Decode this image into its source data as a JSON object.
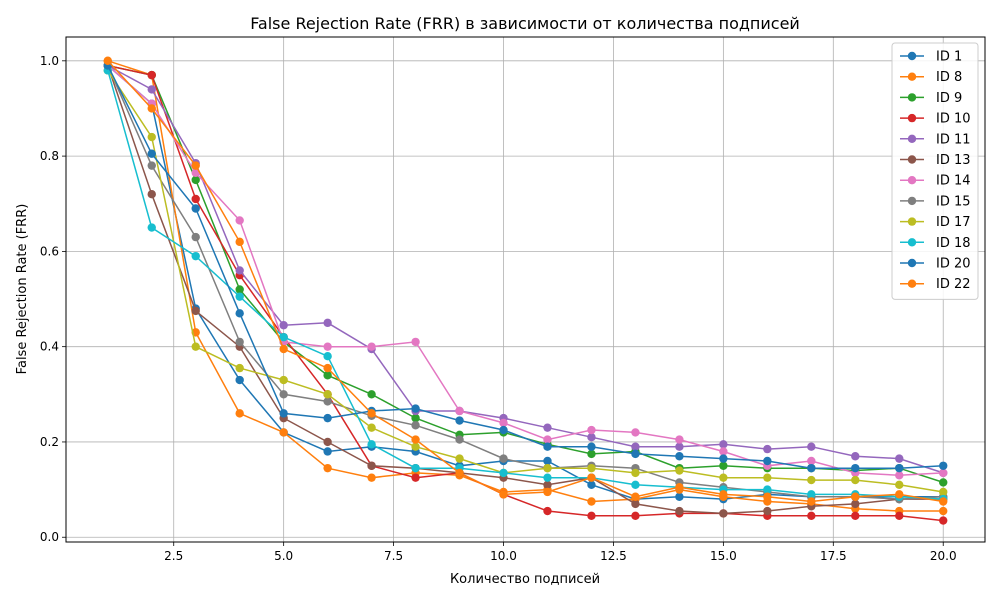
{
  "chart_data": {
    "type": "line",
    "title": "False Rejection Rate (FRR) в зависимости от количества подписей",
    "xlabel": "Количество подписей",
    "ylabel": "False Rejection Rate (FRR)",
    "xlim": [
      0.05,
      20.95
    ],
    "ylim": [
      -0.01,
      1.05
    ],
    "xticks": [
      2.5,
      5.0,
      7.5,
      10.0,
      12.5,
      15.0,
      17.5,
      20.0
    ],
    "xtick_labels": [
      "2.5",
      "5.0",
      "7.5",
      "10.0",
      "12.5",
      "15.0",
      "17.5",
      "20.0"
    ],
    "yticks": [
      0.0,
      0.2,
      0.4,
      0.6,
      0.8,
      1.0
    ],
    "ytick_labels": [
      "0.0",
      "0.2",
      "0.4",
      "0.6",
      "0.8",
      "1.0"
    ],
    "grid": true,
    "legend_position": "top-right",
    "x": [
      1,
      2,
      3,
      4,
      5,
      6,
      7,
      8,
      9,
      10,
      11,
      12,
      13,
      14,
      15,
      16,
      17,
      18,
      19,
      20
    ],
    "series": [
      {
        "name": "ID 1",
        "color": "#1f77b4",
        "values": [
          0.99,
          0.91,
          0.48,
          0.33,
          0.22,
          0.18,
          0.19,
          0.18,
          0.15,
          0.16,
          0.16,
          0.11,
          0.08,
          0.085,
          0.08,
          0.09,
          0.085,
          0.085,
          0.085,
          0.085
        ]
      },
      {
        "name": "ID 8",
        "color": "#ff7f0e",
        "values": [
          1.0,
          0.97,
          0.43,
          0.26,
          0.22,
          0.145,
          0.125,
          0.135,
          0.13,
          0.095,
          0.1,
          0.075,
          0.08,
          0.1,
          0.085,
          0.075,
          0.07,
          0.06,
          0.055,
          0.055
        ]
      },
      {
        "name": "ID 9",
        "color": "#2ca02c",
        "values": [
          0.99,
          0.97,
          0.75,
          0.52,
          0.41,
          0.34,
          0.3,
          0.25,
          0.215,
          0.22,
          0.195,
          0.175,
          0.18,
          0.145,
          0.15,
          0.145,
          0.145,
          0.14,
          0.145,
          0.115
        ]
      },
      {
        "name": "ID 10",
        "color": "#d62728",
        "values": [
          0.99,
          0.97,
          0.71,
          0.55,
          0.42,
          0.3,
          0.15,
          0.125,
          0.135,
          0.09,
          0.055,
          0.045,
          0.045,
          0.05,
          0.05,
          0.045,
          0.045,
          0.045,
          0.045,
          0.035
        ]
      },
      {
        "name": "ID 11",
        "color": "#9467bd",
        "values": [
          0.99,
          0.94,
          0.785,
          0.56,
          0.445,
          0.45,
          0.395,
          0.265,
          0.265,
          0.25,
          0.23,
          0.21,
          0.19,
          0.19,
          0.195,
          0.185,
          0.19,
          0.17,
          0.165,
          0.135
        ]
      },
      {
        "name": "ID 13",
        "color": "#8c564b",
        "values": [
          0.99,
          0.72,
          0.475,
          0.4,
          0.25,
          0.2,
          0.15,
          0.145,
          0.135,
          0.125,
          0.11,
          0.125,
          0.07,
          0.055,
          0.05,
          0.055,
          0.065,
          0.07,
          0.08,
          0.08
        ]
      },
      {
        "name": "ID 14",
        "color": "#e377c2",
        "values": [
          0.99,
          0.91,
          0.765,
          0.665,
          0.41,
          0.4,
          0.4,
          0.41,
          0.265,
          0.24,
          0.205,
          0.225,
          0.22,
          0.205,
          0.18,
          0.15,
          0.16,
          0.135,
          0.13,
          0.135
        ]
      },
      {
        "name": "ID 15",
        "color": "#7f7f7f",
        "values": [
          0.99,
          0.78,
          0.63,
          0.41,
          0.3,
          0.285,
          0.255,
          0.235,
          0.205,
          0.165,
          0.145,
          0.15,
          0.145,
          0.115,
          0.105,
          0.095,
          0.085,
          0.085,
          0.08,
          0.085
        ]
      },
      {
        "name": "ID 17",
        "color": "#bcbd22",
        "values": [
          0.98,
          0.84,
          0.4,
          0.355,
          0.33,
          0.3,
          0.23,
          0.19,
          0.165,
          0.135,
          0.145,
          0.145,
          0.135,
          0.14,
          0.125,
          0.125,
          0.12,
          0.12,
          0.11,
          0.095
        ]
      },
      {
        "name": "ID 18",
        "color": "#17becf",
        "values": [
          0.98,
          0.65,
          0.59,
          0.505,
          0.42,
          0.38,
          0.195,
          0.145,
          0.145,
          0.135,
          0.125,
          0.125,
          0.11,
          0.105,
          0.1,
          0.1,
          0.09,
          0.09,
          0.085,
          0.08
        ]
      },
      {
        "name": "ID 20",
        "color": "#1f77b4",
        "values": [
          0.99,
          0.805,
          0.69,
          0.47,
          0.26,
          0.25,
          0.265,
          0.27,
          0.245,
          0.225,
          0.19,
          0.19,
          0.175,
          0.17,
          0.165,
          0.16,
          0.145,
          0.145,
          0.145,
          0.15
        ]
      },
      {
        "name": "ID 22",
        "color": "#ff7f0e",
        "values": [
          1.0,
          0.9,
          0.78,
          0.62,
          0.395,
          0.355,
          0.26,
          0.205,
          0.135,
          0.09,
          0.095,
          0.125,
          0.085,
          0.105,
          0.09,
          0.085,
          0.075,
          0.085,
          0.09,
          0.075
        ]
      }
    ]
  }
}
